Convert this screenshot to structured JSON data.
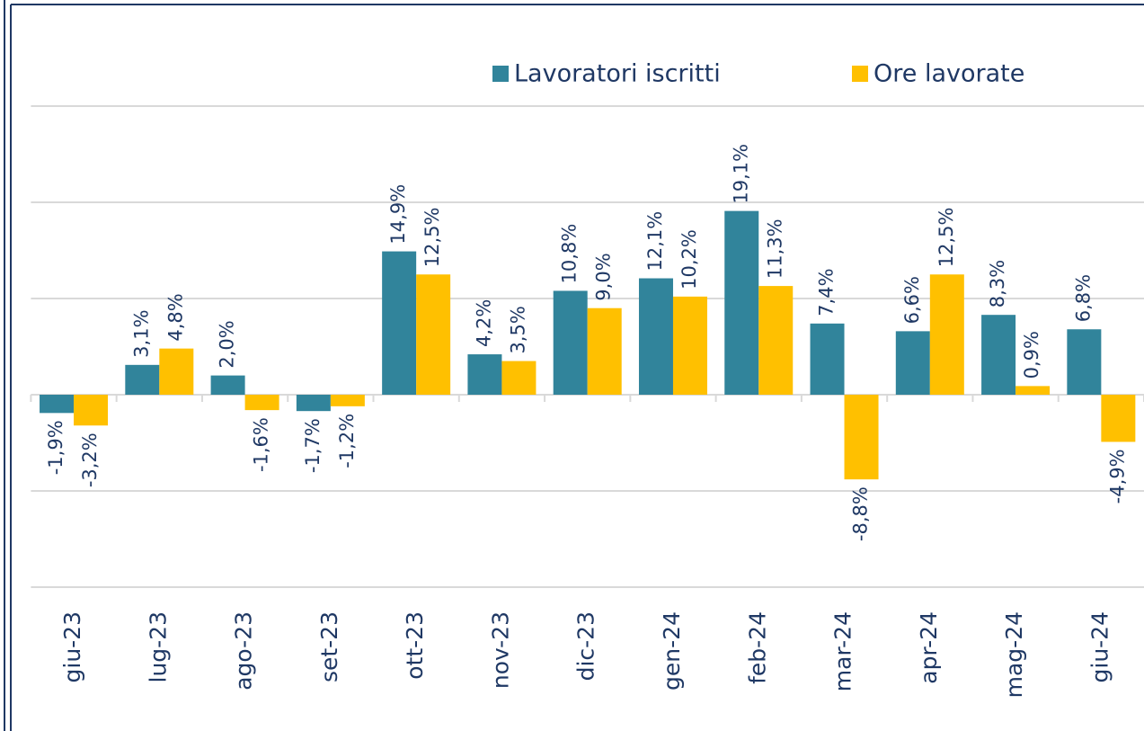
{
  "chart_data": {
    "type": "bar",
    "categories": [
      "giu-23",
      "lug-23",
      "ago-23",
      "set-23",
      "ott-23",
      "nov-23",
      "dic-23",
      "gen-24",
      "feb-24",
      "mar-24",
      "apr-24",
      "mag-24",
      "giu-24"
    ],
    "series": [
      {
        "name": "Lavoratori iscritti",
        "color": "#31849b",
        "values": [
          -1.9,
          3.1,
          2.0,
          -1.7,
          14.9,
          4.2,
          10.8,
          12.1,
          19.1,
          7.4,
          6.6,
          8.3,
          6.8
        ],
        "value_labels": [
          "-1,9%",
          "3,1%",
          "2,0%",
          "-1,7%",
          "14,9%",
          "4,2%",
          "10,8%",
          "12,1%",
          "19,1%",
          "7,4%",
          "6,6%",
          "8,3%",
          "6,8%"
        ]
      },
      {
        "name": "Ore lavorate",
        "color": "#ffc000",
        "values": [
          -3.2,
          4.8,
          -1.6,
          -1.2,
          12.5,
          3.5,
          9.0,
          10.2,
          11.3,
          -8.8,
          12.5,
          0.9,
          -4.9
        ],
        "value_labels": [
          "-3,2%",
          "4,8%",
          "-1,6%",
          "-1,2%",
          "12,5%",
          "3,5%",
          "9,0%",
          "10,2%",
          "11,3%",
          "-8,8%",
          "12,5%",
          "0,9%",
          "-4,9%"
        ]
      }
    ],
    "ylim": [
      -20,
      30
    ],
    "yticks": [
      -20,
      -10,
      0,
      10,
      20,
      30
    ],
    "grid": true,
    "legend": "top-right"
  }
}
